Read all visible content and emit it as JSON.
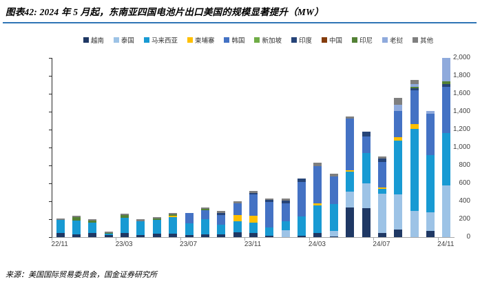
{
  "header": {
    "title": "图表42: 2024 年 5 月起，东南亚四国电池片出口美国的规模显著提升（MW）"
  },
  "footer": {
    "source": "来源：美国国际贸易委员会，国金证券研究所"
  },
  "chart_data": {
    "type": "bar",
    "stacked": true,
    "title": "图表42: 2024 年 5 月起，东南亚四国电池片出口美国的规模显著提升（MW）",
    "unit": "MW",
    "ylim": [
      0,
      2000
    ],
    "ytick_step": 200,
    "grid": false,
    "legend_position": "top",
    "categories": [
      "22/11",
      "22/12",
      "23/01",
      "23/02",
      "23/03",
      "23/04",
      "23/05",
      "23/06",
      "23/07",
      "23/08",
      "23/09",
      "23/10",
      "23/11",
      "23/12",
      "24/01",
      "24/02",
      "24/03",
      "24/04",
      "24/05",
      "24/06",
      "24/07",
      "24/08",
      "24/09",
      "24/10",
      "24/11"
    ],
    "x_axis_labels": [
      "22/11",
      "23/03",
      "23/07",
      "23/11",
      "24/03",
      "24/07",
      "24/11"
    ],
    "labeled_category_indices": [
      0,
      4,
      8,
      12,
      16,
      20,
      24
    ],
    "series": [
      {
        "name": "越南",
        "color": "#1F3864",
        "values": [
          50,
          30,
          45,
          25,
          45,
          25,
          40,
          35,
          25,
          30,
          30,
          55,
          45,
          15,
          0,
          15,
          45,
          10,
          330,
          320,
          45,
          85,
          0,
          70,
          0
        ]
      },
      {
        "name": "泰国",
        "color": "#9DC3E6",
        "values": [
          0,
          0,
          0,
          0,
          0,
          0,
          0,
          0,
          0,
          0,
          0,
          0,
          0,
          0,
          80,
          0,
          0,
          60,
          180,
          280,
          440,
          395,
          290,
          205,
          575
        ]
      },
      {
        "name": "马来西亚",
        "color": "#189AD3",
        "values": [
          140,
          155,
          120,
          10,
          170,
          155,
          150,
          185,
          130,
          170,
          110,
          125,
          120,
          90,
          100,
          215,
          310,
          300,
          220,
          335,
          50,
          600,
          915,
          640,
          585
        ]
      },
      {
        "name": "柬埔寨",
        "color": "#FFC000",
        "values": [
          0,
          0,
          0,
          0,
          0,
          0,
          0,
          15,
          0,
          0,
          0,
          65,
          70,
          0,
          0,
          0,
          20,
          0,
          20,
          0,
          20,
          35,
          60,
          0,
          0
        ]
      },
      {
        "name": "韩国",
        "color": "#4472C4",
        "values": [
          0,
          0,
          0,
          0,
          0,
          0,
          0,
          0,
          115,
          100,
          110,
          130,
          240,
          290,
          200,
          385,
          420,
          310,
          570,
          190,
          285,
          295,
          370,
          460,
          520
        ]
      },
      {
        "name": "新加坡",
        "color": "#70AD47",
        "values": [
          0,
          0,
          0,
          0,
          0,
          0,
          0,
          0,
          0,
          0,
          0,
          0,
          0,
          0,
          0,
          0,
          0,
          0,
          0,
          0,
          0,
          0,
          0,
          0,
          0
        ]
      },
      {
        "name": "印度",
        "color": "#264478",
        "values": [
          0,
          0,
          0,
          0,
          0,
          0,
          0,
          0,
          0,
          0,
          20,
          0,
          20,
          20,
          30,
          40,
          0,
          0,
          0,
          50,
          40,
          0,
          25,
          0,
          30
        ]
      },
      {
        "name": "中国",
        "color": "#843C0C",
        "values": [
          0,
          0,
          0,
          0,
          0,
          0,
          0,
          0,
          0,
          0,
          0,
          0,
          0,
          0,
          0,
          0,
          0,
          0,
          0,
          0,
          0,
          0,
          0,
          0,
          0
        ]
      },
      {
        "name": "印尼",
        "color": "#538135",
        "values": [
          0,
          35,
          20,
          10,
          30,
          0,
          20,
          20,
          0,
          15,
          0,
          0,
          0,
          0,
          0,
          0,
          0,
          0,
          0,
          0,
          0,
          0,
          20,
          0,
          25
        ]
      },
      {
        "name": "老挝",
        "color": "#8FAADC",
        "values": [
          0,
          0,
          0,
          0,
          0,
          0,
          0,
          0,
          0,
          0,
          0,
          0,
          0,
          0,
          0,
          0,
          0,
          0,
          0,
          0,
          0,
          70,
          30,
          35,
          265
        ]
      },
      {
        "name": "其他",
        "color": "#7F7F7F",
        "values": [
          20,
          15,
          15,
          15,
          15,
          20,
          15,
          15,
          0,
          15,
          20,
          25,
          20,
          20,
          20,
          0,
          35,
          25,
          25,
          0,
          20,
          75,
          45,
          0,
          0
        ]
      }
    ]
  }
}
